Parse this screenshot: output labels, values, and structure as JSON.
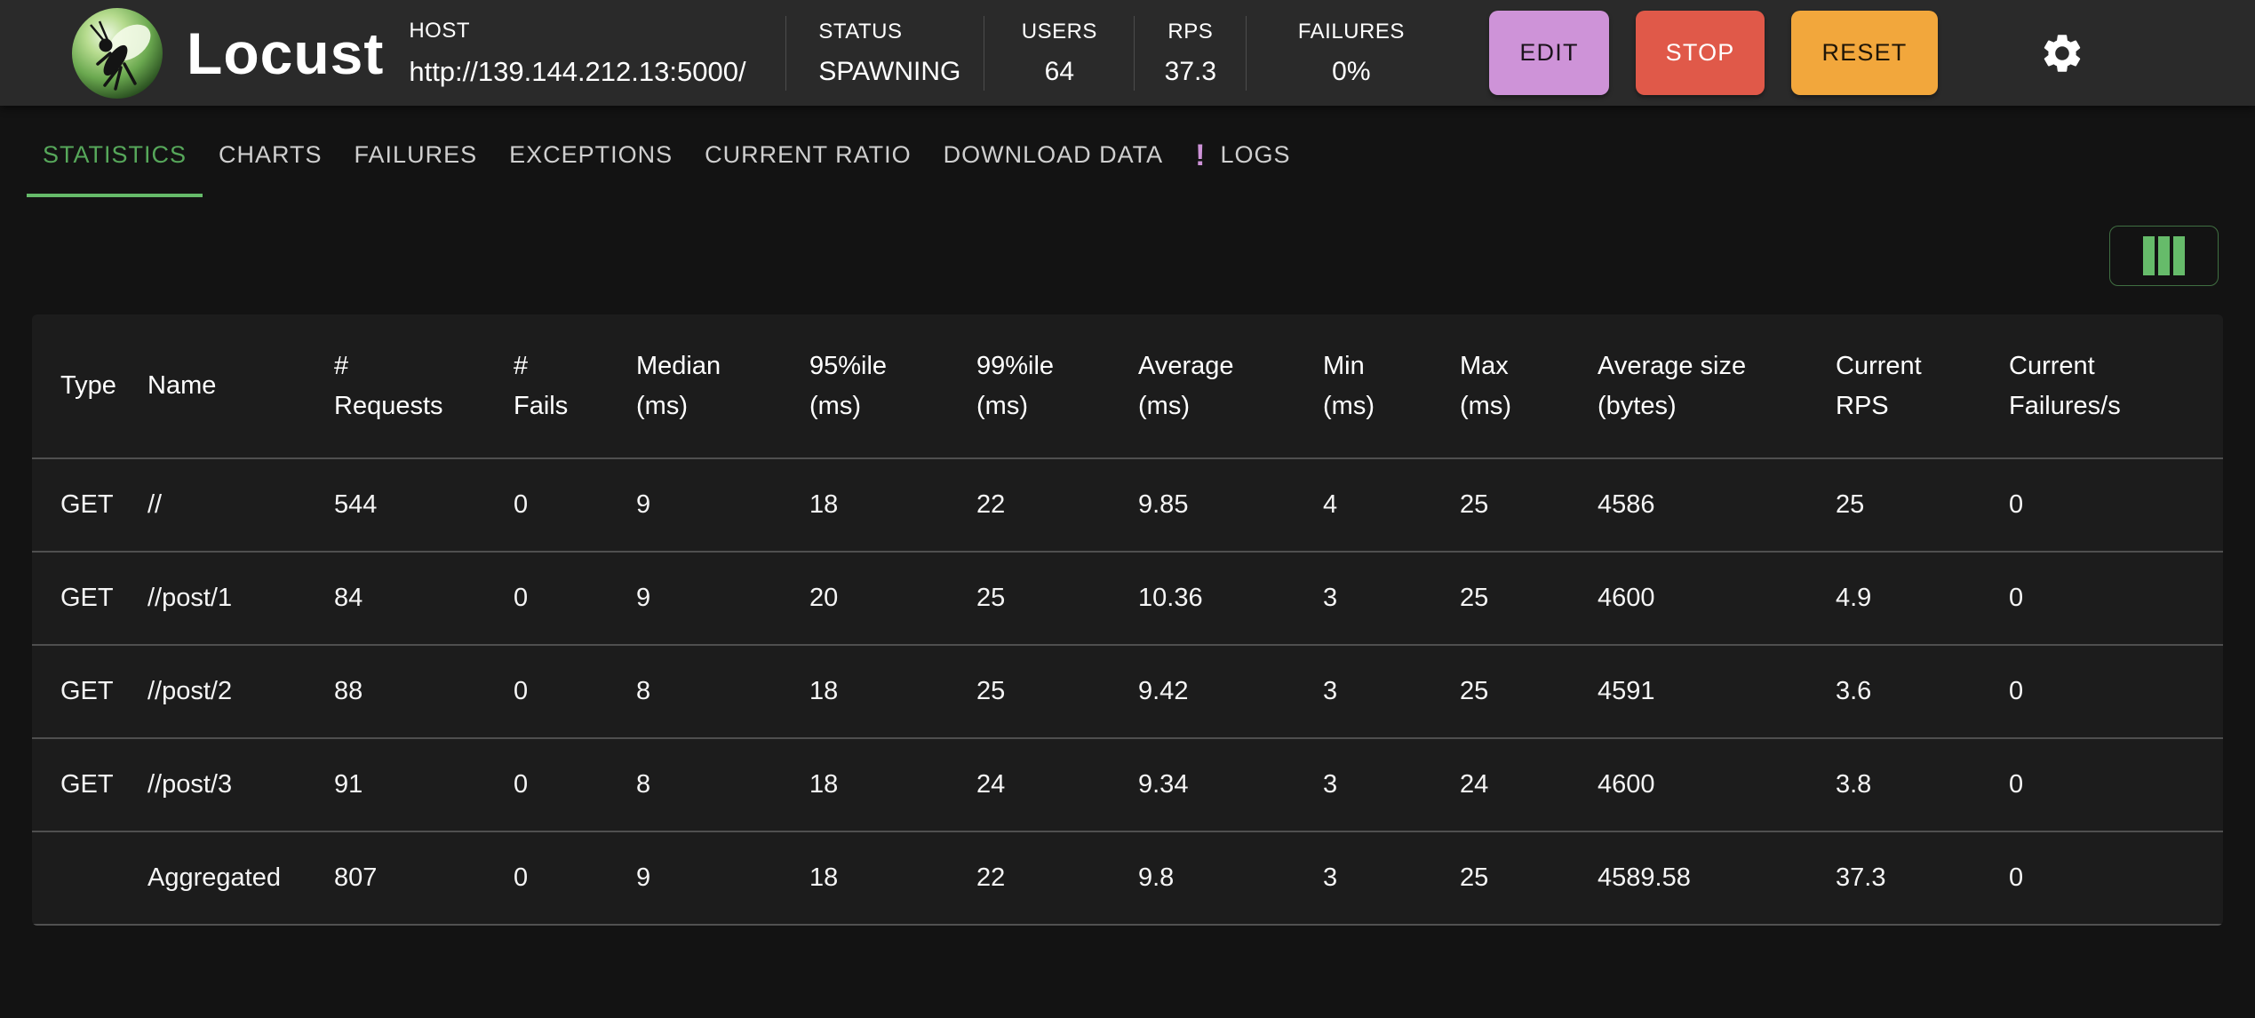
{
  "header": {
    "app_name": "Locust",
    "host": {
      "label": "HOST",
      "url": "http://139.144.212.13:5000/"
    },
    "stats": [
      {
        "label": "STATUS",
        "value": "SPAWNING"
      },
      {
        "label": "USERS",
        "value": "64"
      },
      {
        "label": "RPS",
        "value": "37.3"
      },
      {
        "label": "FAILURES",
        "value": "0%"
      }
    ],
    "buttons": [
      {
        "id": "edit",
        "label": "EDIT"
      },
      {
        "id": "stop",
        "label": "STOP"
      },
      {
        "id": "reset",
        "label": "RESET"
      }
    ],
    "settings_icon": "gear-icon"
  },
  "tabs": [
    {
      "label": "STATISTICS",
      "active": true
    },
    {
      "label": "CHARTS",
      "active": false
    },
    {
      "label": "FAILURES",
      "active": false
    },
    {
      "label": "EXCEPTIONS",
      "active": false
    },
    {
      "label": "CURRENT RATIO",
      "active": false
    },
    {
      "label": "DOWNLOAD DATA",
      "active": false
    },
    {
      "label": "LOGS",
      "active": false,
      "badge": "!"
    }
  ],
  "toolbar": {
    "column_selector_icon": "columns-icon"
  },
  "table": {
    "columns": [
      "Type",
      "Name",
      "#\nRequests",
      "#\nFails",
      "Median\n(ms)",
      "95%ile\n(ms)",
      "99%ile\n(ms)",
      "Average\n(ms)",
      "Min\n(ms)",
      "Max\n(ms)",
      "Average size\n(bytes)",
      "Current\nRPS",
      "Current\nFailures/s"
    ],
    "rows": [
      [
        "GET",
        "//",
        "544",
        "0",
        "9",
        "18",
        "22",
        "9.85",
        "4",
        "25",
        "4586",
        "25",
        "0"
      ],
      [
        "GET",
        "//post/1",
        "84",
        "0",
        "9",
        "20",
        "25",
        "10.36",
        "3",
        "25",
        "4600",
        "4.9",
        "0"
      ],
      [
        "GET",
        "//post/2",
        "88",
        "0",
        "8",
        "18",
        "25",
        "9.42",
        "3",
        "25",
        "4591",
        "3.6",
        "0"
      ],
      [
        "GET",
        "//post/3",
        "91",
        "0",
        "8",
        "18",
        "24",
        "9.34",
        "3",
        "24",
        "4600",
        "3.8",
        "0"
      ],
      [
        "",
        "Aggregated",
        "807",
        "0",
        "9",
        "18",
        "22",
        "9.8",
        "3",
        "25",
        "4589.58",
        "37.3",
        "0"
      ]
    ]
  },
  "colors": {
    "accent_green": "#56a75a",
    "accent_green_bright": "#66bb6a",
    "edit_purple": "#ce93d8",
    "stop_red": "#e05949",
    "reset_orange": "#f2a73c",
    "badge_purple": "#ce93d8",
    "header_bg": "#2a2a2a",
    "page_bg": "#131313",
    "paper_bg": "#1c1c1c"
  }
}
